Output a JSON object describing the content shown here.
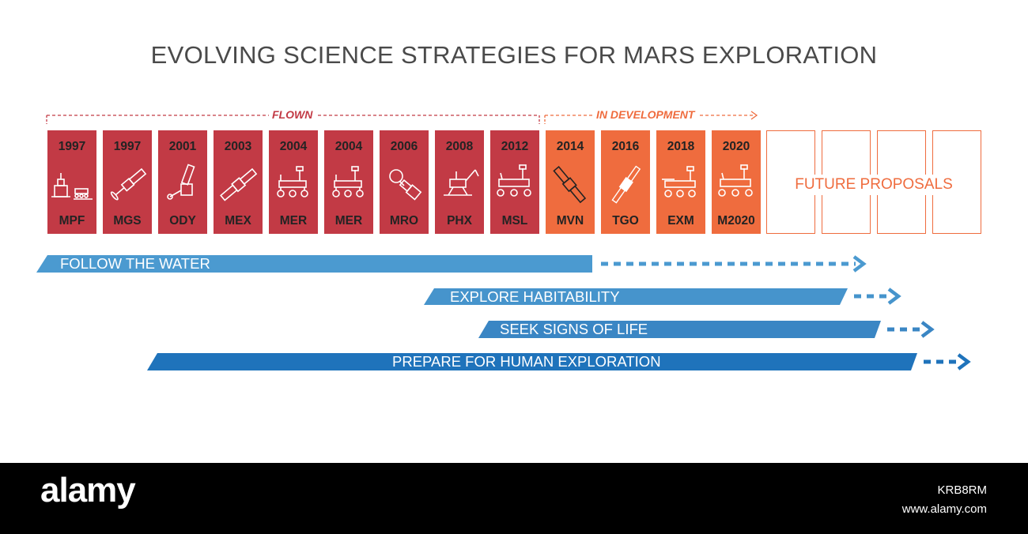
{
  "title": "EVOLVING SCIENCE STRATEGIES FOR MARS EXPLORATION",
  "groups": {
    "flown": "FLOWN",
    "in_development": "IN DEVELOPMENT"
  },
  "colors": {
    "flown": "#c23a45",
    "in_development": "#ef6c3e",
    "strategy_light": "#4b9ad0",
    "strategy_dark": "#1f73bb"
  },
  "missions": [
    {
      "year": "1997",
      "code": "MPF",
      "status": "flown",
      "icon": "lander-rover-icon"
    },
    {
      "year": "1997",
      "code": "MGS",
      "status": "flown",
      "icon": "orbiter-icon"
    },
    {
      "year": "2001",
      "code": "ODY",
      "status": "flown",
      "icon": "orbiter-icon"
    },
    {
      "year": "2003",
      "code": "MEX",
      "status": "flown",
      "icon": "orbiter-icon"
    },
    {
      "year": "2004",
      "code": "MER",
      "status": "flown",
      "icon": "rover-icon"
    },
    {
      "year": "2004",
      "code": "MER",
      "status": "flown",
      "icon": "rover-icon"
    },
    {
      "year": "2006",
      "code": "MRO",
      "status": "flown",
      "icon": "orbiter-icon"
    },
    {
      "year": "2008",
      "code": "PHX",
      "status": "flown",
      "icon": "lander-icon"
    },
    {
      "year": "2012",
      "code": "MSL",
      "status": "flown",
      "icon": "rover-icon"
    },
    {
      "year": "2014",
      "code": "MVN",
      "status": "in_development",
      "icon": "orbiter-icon"
    },
    {
      "year": "2016",
      "code": "TGO",
      "status": "in_development",
      "icon": "orbiter-icon"
    },
    {
      "year": "2018",
      "code": "EXM",
      "status": "in_development",
      "icon": "rover-icon"
    },
    {
      "year": "2020",
      "code": "M2020",
      "status": "in_development",
      "icon": "rover-icon"
    }
  ],
  "future": {
    "label": "FUTURE PROPOSALS"
  },
  "strategies": [
    {
      "label": "FOLLOW THE WATER",
      "color": "#4b9ad0"
    },
    {
      "label": "EXPLORE HABITABILITY",
      "color": "#4694cc"
    },
    {
      "label": "SEEK SIGNS OF LIFE",
      "color": "#3a86c4"
    },
    {
      "label": "PREPARE FOR HUMAN EXPLORATION",
      "color": "#1f73bb"
    }
  ],
  "footer": {
    "logo": "alamy",
    "image_id": "KRB8RM",
    "url": "www.alamy.com"
  }
}
